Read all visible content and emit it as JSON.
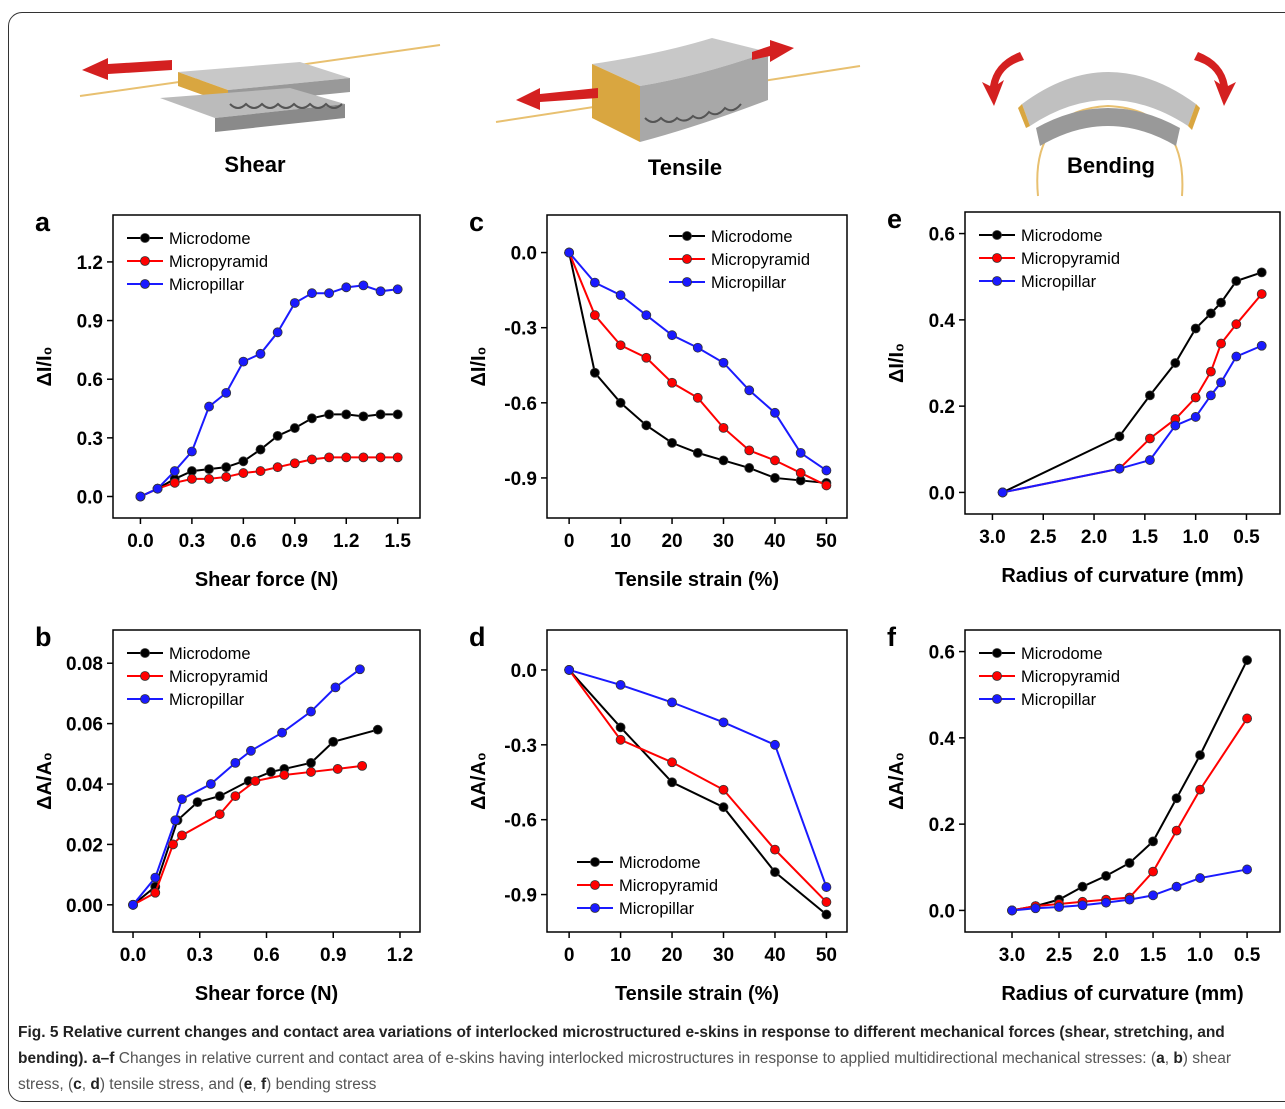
{
  "illustrations": [
    "Shear",
    "Tensile",
    "Bending"
  ],
  "chart_data": [
    {
      "type": "line",
      "panel": "a",
      "xlabel": "Shear force (N)",
      "ylabel": "ΔI/I₀",
      "legend": "upper left",
      "xlim": [
        -0.16,
        1.63
      ],
      "ylim": [
        -0.11,
        1.44
      ],
      "xticks": [
        {
          "value": 0,
          "label": "0.0"
        },
        0.3,
        0.6,
        0.9,
        1.2,
        1.5
      ],
      "yticks": [
        {
          "value": 0,
          "label": "0.0"
        },
        0.3,
        0.6,
        0.9,
        1.2
      ],
      "series": [
        {
          "name": "Microdome",
          "color": "#000000",
          "x": [
            0,
            0.1,
            0.2,
            0.3,
            0.4,
            0.5,
            0.6,
            0.7,
            0.8,
            0.9,
            1.0,
            1.1,
            1.2,
            1.3,
            1.4,
            1.5
          ],
          "values": [
            0,
            0.04,
            0.09,
            0.13,
            0.14,
            0.15,
            0.18,
            0.24,
            0.31,
            0.35,
            0.4,
            0.42,
            0.42,
            0.41,
            0.42,
            0.42
          ]
        },
        {
          "name": "Micropyramid",
          "color": "#ff0000",
          "x": [
            0,
            0.1,
            0.2,
            0.3,
            0.4,
            0.5,
            0.6,
            0.7,
            0.8,
            0.9,
            1.0,
            1.1,
            1.2,
            1.3,
            1.4,
            1.5
          ],
          "values": [
            0,
            0.04,
            0.07,
            0.09,
            0.09,
            0.1,
            0.12,
            0.13,
            0.15,
            0.17,
            0.19,
            0.2,
            0.2,
            0.2,
            0.2,
            0.2
          ]
        },
        {
          "name": "Micropillar",
          "color": "#1a1aff",
          "x": [
            0,
            0.1,
            0.2,
            0.3,
            0.4,
            0.5,
            0.6,
            0.7,
            0.8,
            0.9,
            1.0,
            1.1,
            1.2,
            1.3,
            1.4,
            1.5
          ],
          "values": [
            0,
            0.04,
            0.13,
            0.23,
            0.46,
            0.53,
            0.69,
            0.73,
            0.84,
            0.99,
            1.04,
            1.04,
            1.07,
            1.08,
            1.05,
            1.06
          ]
        }
      ]
    },
    {
      "type": "line",
      "panel": "b",
      "xlabel": "Shear force (N)",
      "ylabel": "ΔA/A₀",
      "legend": "upper left",
      "xlim": [
        -0.09,
        1.29
      ],
      "ylim": [
        -0.009,
        0.091
      ],
      "xticks": [
        {
          "value": 0,
          "label": "0.0"
        },
        0.3,
        0.6,
        0.9,
        1.2
      ],
      "yticks": [
        {
          "value": 0,
          "label": "0.00"
        },
        0.02,
        0.04,
        0.06,
        0.08
      ],
      "series": [
        {
          "name": "Microdome",
          "color": "#000000",
          "x": [
            0,
            0.1,
            0.2,
            0.29,
            0.39,
            0.52,
            0.62,
            0.68,
            0.8,
            0.9,
            1.1
          ],
          "values": [
            0,
            0.006,
            0.028,
            0.034,
            0.036,
            0.041,
            0.044,
            0.045,
            0.047,
            0.054,
            0.058
          ]
        },
        {
          "name": "Micropyramid",
          "color": "#ff0000",
          "x": [
            0,
            0.1,
            0.18,
            0.22,
            0.39,
            0.46,
            0.55,
            0.68,
            0.8,
            0.92,
            1.03
          ],
          "values": [
            0,
            0.004,
            0.02,
            0.023,
            0.03,
            0.036,
            0.041,
            0.043,
            0.044,
            0.045,
            0.046
          ]
        },
        {
          "name": "Micropillar",
          "color": "#1a1aff",
          "x": [
            0,
            0.1,
            0.19,
            0.22,
            0.35,
            0.46,
            0.53,
            0.67,
            0.8,
            0.91,
            1.02
          ],
          "values": [
            0,
            0.009,
            0.028,
            0.035,
            0.04,
            0.047,
            0.051,
            0.057,
            0.064,
            0.072,
            0.078
          ]
        }
      ]
    },
    {
      "type": "line",
      "panel": "c",
      "xlabel": "Tensile strain (%)",
      "ylabel": "ΔI/I₀",
      "legend": "upper right",
      "xlim": [
        -4.3,
        54
      ],
      "ylim": [
        -1.06,
        0.15
      ],
      "xticks": [
        0,
        10,
        20,
        30,
        40,
        50
      ],
      "yticks": [
        {
          "value": 0,
          "label": "0.0"
        },
        -0.3,
        -0.6,
        -0.9
      ],
      "series": [
        {
          "name": "Microdome",
          "color": "#000000",
          "x": [
            0,
            5,
            10,
            15,
            20,
            25,
            30,
            35,
            40,
            45,
            50
          ],
          "values": [
            0,
            -0.48,
            -0.6,
            -0.69,
            -0.76,
            -0.8,
            -0.83,
            -0.86,
            -0.9,
            -0.91,
            -0.92
          ]
        },
        {
          "name": "Micropyramid",
          "color": "#ff0000",
          "x": [
            0,
            5,
            10,
            15,
            20,
            25,
            30,
            35,
            40,
            45,
            50
          ],
          "values": [
            0,
            -0.25,
            -0.37,
            -0.42,
            -0.52,
            -0.58,
            -0.7,
            -0.79,
            -0.83,
            -0.88,
            -0.93
          ]
        },
        {
          "name": "Micropillar",
          "color": "#1a1aff",
          "x": [
            0,
            5,
            10,
            15,
            20,
            25,
            30,
            35,
            40,
            45,
            50
          ],
          "values": [
            0,
            -0.12,
            -0.17,
            -0.25,
            -0.33,
            -0.38,
            -0.44,
            -0.55,
            -0.64,
            -0.8,
            -0.87
          ]
        }
      ]
    },
    {
      "type": "line",
      "panel": "d",
      "xlabel": "Tensile strain (%)",
      "ylabel": "ΔA/A₀",
      "legend": "lower left",
      "xlim": [
        -4.3,
        54
      ],
      "ylim": [
        -1.05,
        0.16
      ],
      "xticks": [
        0,
        10,
        20,
        30,
        40,
        50
      ],
      "yticks": [
        {
          "value": 0,
          "label": "0.0"
        },
        -0.3,
        -0.6,
        -0.9
      ],
      "series": [
        {
          "name": "Microdome",
          "color": "#000000",
          "x": [
            0,
            10,
            20,
            30,
            40,
            50
          ],
          "values": [
            0,
            -0.23,
            -0.45,
            -0.55,
            -0.81,
            -0.98
          ]
        },
        {
          "name": "Micropyramid",
          "color": "#ff0000",
          "x": [
            0,
            10,
            20,
            30,
            40,
            50
          ],
          "values": [
            0,
            -0.28,
            -0.37,
            -0.48,
            -0.72,
            -0.93
          ]
        },
        {
          "name": "Micropillar",
          "color": "#1a1aff",
          "x": [
            0,
            10,
            20,
            30,
            40,
            50
          ],
          "values": [
            0,
            -0.06,
            -0.13,
            -0.21,
            -0.3,
            -0.87
          ]
        }
      ]
    },
    {
      "type": "line",
      "panel": "e",
      "xlabel": "Radius of curvature (mm)",
      "ylabel": "ΔI/I₀",
      "legend": "upper left",
      "xlim": [
        3.27,
        0.17
      ],
      "ylim": [
        -0.05,
        0.65
      ],
      "xticks": [
        {
          "value": 3,
          "label": "3.0"
        },
        2.5,
        {
          "value": 2,
          "label": "2.0"
        },
        1.5,
        {
          "value": 1,
          "label": "1.0"
        },
        0.5
      ],
      "yticks": [
        {
          "value": 0,
          "label": "0.0"
        },
        0.2,
        0.4,
        0.6
      ],
      "series": [
        {
          "name": "Microdome",
          "color": "#000000",
          "x": [
            2.9,
            1.75,
            1.45,
            1.2,
            1.0,
            0.85,
            0.75,
            0.6,
            0.35
          ],
          "values": [
            0,
            0.13,
            0.225,
            0.3,
            0.38,
            0.415,
            0.44,
            0.49,
            0.51
          ]
        },
        {
          "name": "Micropyramid",
          "color": "#ff0000",
          "x": [
            2.9,
            1.75,
            1.45,
            1.2,
            1.0,
            0.85,
            0.75,
            0.6,
            0.35
          ],
          "values": [
            0,
            0.055,
            0.125,
            0.17,
            0.22,
            0.28,
            0.345,
            0.39,
            0.46
          ]
        },
        {
          "name": "Micropillar",
          "color": "#1a1aff",
          "x": [
            2.9,
            1.75,
            1.45,
            1.2,
            1.0,
            0.85,
            0.75,
            0.6,
            0.35
          ],
          "values": [
            0,
            0.055,
            0.075,
            0.155,
            0.175,
            0.225,
            0.255,
            0.315,
            0.34
          ]
        }
      ]
    },
    {
      "type": "line",
      "panel": "f",
      "xlabel": "Radius of curvature (mm)",
      "ylabel": "ΔA/A₀",
      "legend": "upper left",
      "xlim": [
        3.5,
        0.15
      ],
      "ylim": [
        -0.05,
        0.65
      ],
      "xticks": [
        {
          "value": 3,
          "label": "3.0"
        },
        2.5,
        {
          "value": 2,
          "label": "2.0"
        },
        1.5,
        {
          "value": 1,
          "label": "1.0"
        },
        0.5
      ],
      "yticks": [
        {
          "value": 0,
          "label": "0.0"
        },
        0.2,
        0.4,
        0.6
      ],
      "series": [
        {
          "name": "Microdome",
          "color": "#000000",
          "x": [
            3.0,
            2.75,
            2.5,
            2.25,
            2.0,
            1.75,
            1.5,
            1.25,
            1.0,
            0.5
          ],
          "values": [
            0,
            0.01,
            0.025,
            0.055,
            0.08,
            0.11,
            0.16,
            0.26,
            0.36,
            0.58
          ]
        },
        {
          "name": "Micropyramid",
          "color": "#ff0000",
          "x": [
            3.0,
            2.75,
            2.5,
            2.25,
            2.0,
            1.75,
            1.5,
            1.25,
            1.0,
            0.5
          ],
          "values": [
            0,
            0.01,
            0.015,
            0.02,
            0.025,
            0.03,
            0.09,
            0.185,
            0.28,
            0.445
          ]
        },
        {
          "name": "Micropillar",
          "color": "#1a1aff",
          "x": [
            3.0,
            2.75,
            2.5,
            2.25,
            2.0,
            1.75,
            1.5,
            1.25,
            1.0,
            0.5
          ],
          "values": [
            0,
            0.005,
            0.008,
            0.012,
            0.018,
            0.025,
            0.035,
            0.055,
            0.075,
            0.095
          ]
        }
      ]
    }
  ],
  "caption": [
    {
      "text": "Fig. 5 Relative current changes and contact area variations of interlocked microstructured e-skins in response to different mechanical forces (shear, stretching, and bending).",
      "bold": true
    },
    {
      "text": "a–f",
      "bold": true
    },
    {
      "text": "Changes in relative current and contact area of e-skins having interlocked microstructures in response to applied multidirectional mechanical stresses: (",
      "bold": false
    },
    {
      "text": "a",
      "bold": true
    },
    {
      "text": ",",
      "bold": false
    },
    {
      "text": "b",
      "bold": true
    },
    {
      "text": ") shear stress, (",
      "bold": false
    },
    {
      "text": "c",
      "bold": true
    },
    {
      "text": ",",
      "bold": false
    },
    {
      "text": "d",
      "bold": true
    },
    {
      "text": ") tensile stress, and (",
      "bold": false
    },
    {
      "text": "e",
      "bold": true
    },
    {
      "text": ",",
      "bold": false
    },
    {
      "text": "f",
      "bold": true
    },
    {
      "text": ") bending stress",
      "bold": false
    }
  ]
}
